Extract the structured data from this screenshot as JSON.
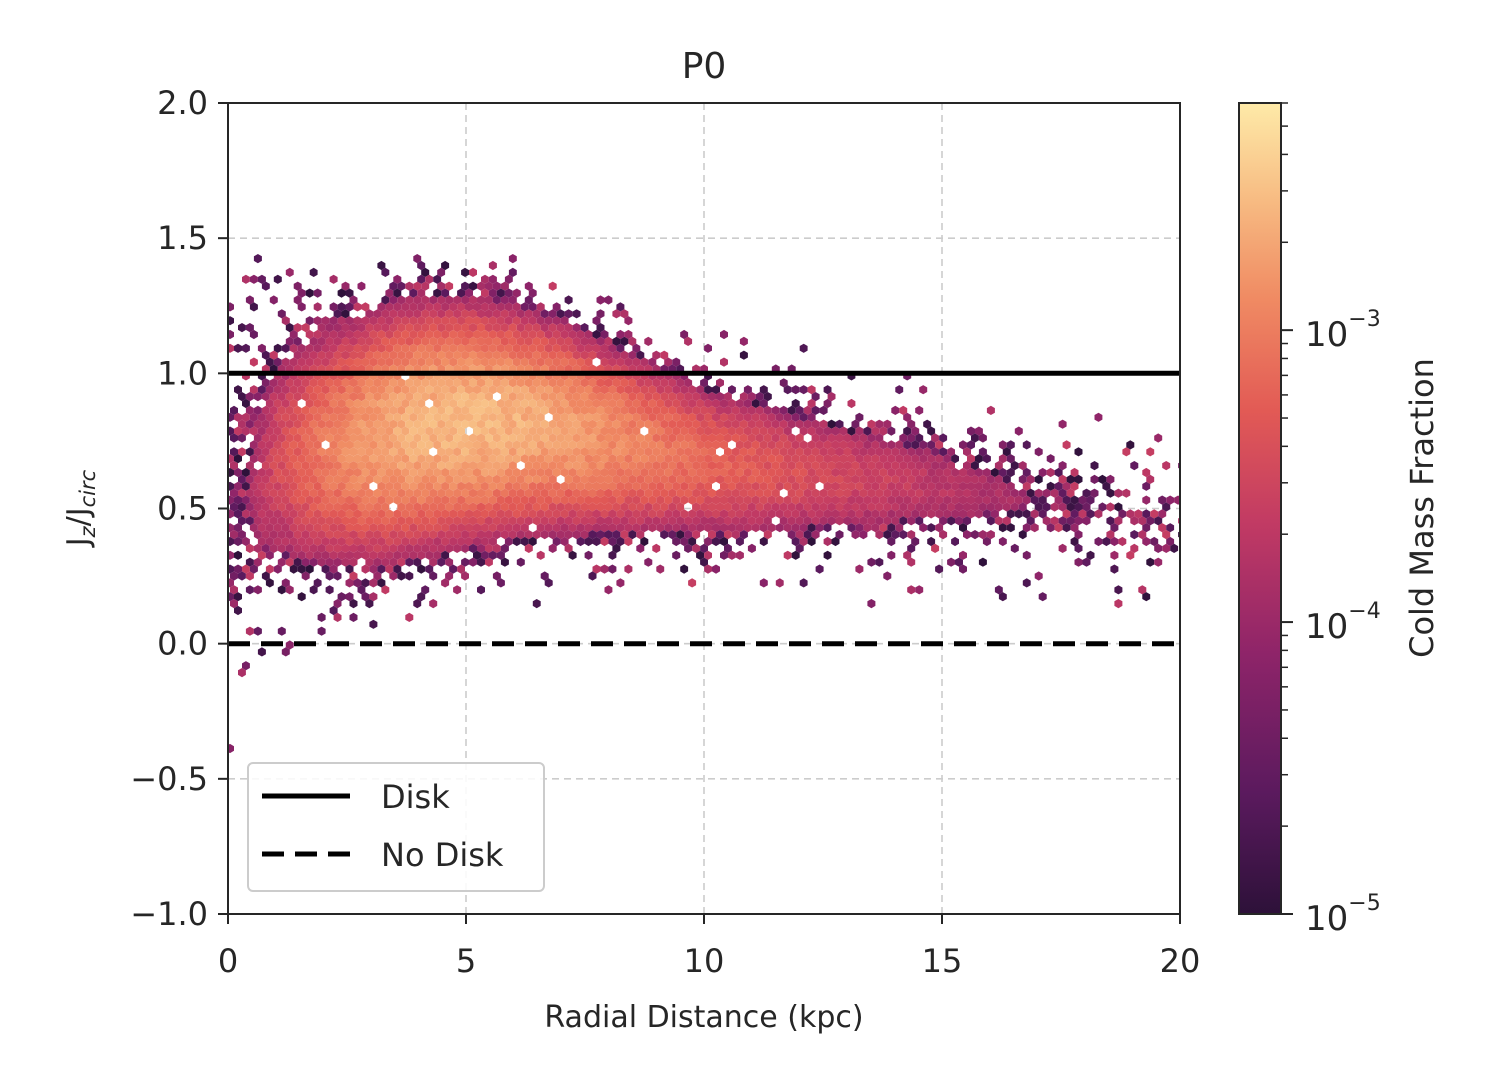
{
  "chart_data": {
    "type": "heatmap",
    "subtype": "hexbin",
    "title": "P0",
    "xlabel": "Radial Distance (kpc)",
    "ylabel_main": "J",
    "ylabel_sub1": "z",
    "ylabel_mid": "/J",
    "ylabel_sub2": "circ",
    "xlim": [
      0,
      20
    ],
    "ylim": [
      -1.0,
      2.0
    ],
    "xticks": [
      0,
      5,
      10,
      15,
      20
    ],
    "xtick_labels": [
      "0",
      "5",
      "10",
      "15",
      "20"
    ],
    "yticks": [
      -1.0,
      -0.5,
      0.0,
      0.5,
      1.0,
      1.5,
      2.0
    ],
    "ytick_labels": [
      "−1.0",
      "−0.5",
      "0.0",
      "0.5",
      "1.0",
      "1.5",
      "2.0"
    ],
    "grid": true,
    "lines": [
      {
        "name": "Disk",
        "y": 1.0,
        "style": "solid",
        "color": "#000000"
      },
      {
        "name": "No Disk",
        "y": 0.0,
        "style": "dashed",
        "color": "#000000"
      }
    ],
    "legend": {
      "placement": "lower-left",
      "entries": [
        {
          "label": "Disk",
          "style": "solid"
        },
        {
          "label": "No Disk",
          "style": "dashed"
        }
      ]
    },
    "colorbar": {
      "label": "Cold Mass Fraction",
      "scale": "log",
      "range": [
        1e-05,
        0.006
      ],
      "colormap": "magma",
      "ticks": [
        {
          "value": 1e-05,
          "base": "10",
          "exp": "−5"
        },
        {
          "value": 0.0001,
          "base": "10",
          "exp": "−4"
        },
        {
          "value": 0.001,
          "base": "10",
          "exp": "−3"
        }
      ]
    },
    "density_ridge": [
      {
        "x": 0.3,
        "center": 0.55,
        "spread": 0.3,
        "peak": 0.0001
      },
      {
        "x": 1.0,
        "center": 0.68,
        "spread": 0.24,
        "peak": 0.00035
      },
      {
        "x": 2.0,
        "center": 0.72,
        "spread": 0.22,
        "peak": 0.001
      },
      {
        "x": 3.0,
        "center": 0.76,
        "spread": 0.22,
        "peak": 0.0018
      },
      {
        "x": 4.0,
        "center": 0.8,
        "spread": 0.21,
        "peak": 0.0025
      },
      {
        "x": 5.0,
        "center": 0.82,
        "spread": 0.2,
        "peak": 0.0028
      },
      {
        "x": 6.0,
        "center": 0.82,
        "spread": 0.19,
        "peak": 0.0025
      },
      {
        "x": 7.0,
        "center": 0.8,
        "spread": 0.18,
        "peak": 0.002
      },
      {
        "x": 8.0,
        "center": 0.76,
        "spread": 0.17,
        "peak": 0.0014
      },
      {
        "x": 9.0,
        "center": 0.72,
        "spread": 0.16,
        "peak": 0.001
      },
      {
        "x": 10.0,
        "center": 0.68,
        "spread": 0.15,
        "peak": 0.0007
      },
      {
        "x": 12.0,
        "center": 0.63,
        "spread": 0.14,
        "peak": 0.0004
      },
      {
        "x": 14.0,
        "center": 0.6,
        "spread": 0.13,
        "peak": 0.00025
      },
      {
        "x": 16.0,
        "center": 0.56,
        "spread": 0.12,
        "peak": 0.00015
      },
      {
        "x": 18.0,
        "center": 0.5,
        "spread": 0.11,
        "peak": 9e-05
      },
      {
        "x": 20.0,
        "center": 0.45,
        "spread": 0.1,
        "peak": 6e-05
      }
    ]
  }
}
